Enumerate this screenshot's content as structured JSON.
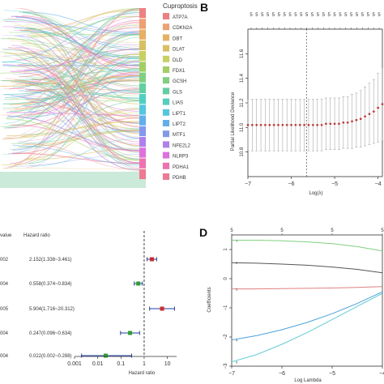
{
  "panels": {
    "b_letter": "B",
    "d_letter": "D"
  },
  "chart_data": [
    {
      "type": "sankey",
      "legend_title": "Cuproptosis",
      "legend": [
        {
          "label": "ATP7A",
          "color": "#f08080"
        },
        {
          "label": "CDKN2A",
          "color": "#f0a070"
        },
        {
          "label": "DBT",
          "color": "#e8b060"
        },
        {
          "label": "DLAT",
          "color": "#d8c060"
        },
        {
          "label": "DLD",
          "color": "#c8d060"
        },
        {
          "label": "FDX1",
          "color": "#a0d060"
        },
        {
          "label": "GCSH",
          "color": "#80d080"
        },
        {
          "label": "GLS",
          "color": "#60d0a0"
        },
        {
          "label": "LIAS",
          "color": "#50d0c0"
        },
        {
          "label": "LIPT1",
          "color": "#50c8e0"
        },
        {
          "label": "LIPT2",
          "color": "#60b0f0"
        },
        {
          "label": "MTF1",
          "color": "#8098f0"
        },
        {
          "label": "NFE2L2",
          "color": "#b080f0"
        },
        {
          "label": "NLRP3",
          "color": "#e070e0"
        },
        {
          "label": "PDHA1",
          "color": "#f070b0"
        },
        {
          "label": "PDHB",
          "color": "#f07890"
        }
      ]
    },
    {
      "type": "errorbar",
      "xlabel": "Log(λ)",
      "ylabel": "Partial Likelihood Deviance",
      "xlim": [
        -7,
        -3.9
      ],
      "ylim": [
        10.6,
        11.8
      ],
      "x_ticks": [
        -7,
        -6,
        -5,
        -4
      ],
      "y_ticks": [
        10.8,
        11.0,
        11.2,
        11.4,
        11.6
      ],
      "top_axis_ticks": [
        "5",
        "5",
        "5",
        "5",
        "5",
        "5",
        "5",
        "5",
        "5",
        "5",
        "5",
        "5",
        "5",
        "5",
        "5",
        "5",
        "5",
        "5",
        "5",
        "5",
        "5",
        "5",
        "5",
        "5"
      ],
      "vline_x": -5.65,
      "color_point": "#d62728",
      "x": [
        -7.0,
        -6.9,
        -6.8,
        -6.7,
        -6.6,
        -6.5,
        -6.4,
        -6.3,
        -6.2,
        -6.1,
        -6.0,
        -5.9,
        -5.8,
        -5.7,
        -5.6,
        -5.5,
        -5.4,
        -5.3,
        -5.2,
        -5.1,
        -5.0,
        -4.9,
        -4.8,
        -4.7,
        -4.6,
        -4.5,
        -4.4,
        -4.3,
        -4.2,
        -4.1,
        -4.0,
        -3.9
      ],
      "y": [
        11.02,
        11.02,
        11.02,
        11.02,
        11.02,
        11.02,
        11.02,
        11.02,
        11.02,
        11.02,
        11.02,
        11.02,
        11.02,
        11.02,
        11.02,
        11.02,
        11.02,
        11.02,
        11.03,
        11.03,
        11.03,
        11.03,
        11.04,
        11.04,
        11.05,
        11.06,
        11.07,
        11.09,
        11.11,
        11.13,
        11.16,
        11.19
      ],
      "err": [
        0.21,
        0.21,
        0.21,
        0.21,
        0.21,
        0.21,
        0.21,
        0.21,
        0.21,
        0.21,
        0.21,
        0.21,
        0.21,
        0.21,
        0.21,
        0.21,
        0.21,
        0.21,
        0.21,
        0.21,
        0.21,
        0.21,
        0.21,
        0.21,
        0.22,
        0.22,
        0.23,
        0.24,
        0.25,
        0.26,
        0.28,
        0.3
      ]
    },
    {
      "type": "forest",
      "col1_header": "value",
      "col2_header": "Hazard ratio",
      "xlabel": "Hazard ratio",
      "x_scale": "log",
      "xlim": [
        0.001,
        25
      ],
      "x_ticks": [
        "0.001",
        "0.01",
        "0.1",
        "1",
        "10"
      ],
      "rows": [
        {
          "pvalue": "002",
          "text": "2.152(1.338~3.461)",
          "hr": 2.152,
          "lo": 1.338,
          "hi": 3.461,
          "color": "#d62728"
        },
        {
          "pvalue": "004",
          "text": "0.558(0.374~0.834)",
          "hr": 0.558,
          "lo": 0.374,
          "hi": 0.834,
          "color": "#2ca02c"
        },
        {
          "pvalue": "005",
          "text": "5.904(1.716~20.312)",
          "hr": 5.904,
          "lo": 1.716,
          "hi": 20.312,
          "color": "#d62728"
        },
        {
          "pvalue": "004",
          "text": "0.247(0.096~0.634)",
          "hr": 0.247,
          "lo": 0.096,
          "hi": 0.634,
          "color": "#2ca02c"
        },
        {
          "pvalue": "004",
          "text": "0.022(0.002~0.288)",
          "hr": 0.022,
          "lo": 0.002,
          "hi": 0.288,
          "color": "#2ca02c"
        }
      ],
      "ci_color": "#1f3fa8"
    },
    {
      "type": "line",
      "xlabel": "Log Lambda",
      "ylabel": "Coefficients",
      "xlim": [
        -7,
        -4
      ],
      "ylim": [
        -3,
        1.5
      ],
      "x_ticks": [
        -7,
        -6,
        -5,
        -4
      ],
      "y_ticks": [
        -3,
        -2,
        -1,
        0,
        1
      ],
      "top_axis_ticks": [
        "5",
        "5",
        "5",
        "5"
      ],
      "series": [
        {
          "color": "#7fd07f",
          "x": [
            -7,
            -6.5,
            -6,
            -5.5,
            -5,
            -4.5,
            -4
          ],
          "y": [
            1.32,
            1.32,
            1.3,
            1.26,
            1.2,
            1.1,
            0.95
          ]
        },
        {
          "color": "#555555",
          "x": [
            -7,
            -6.5,
            -6,
            -5.5,
            -5,
            -4.5,
            -4
          ],
          "y": [
            0.55,
            0.53,
            0.5,
            0.46,
            0.4,
            0.32,
            0.2
          ]
        },
        {
          "color": "#e08080",
          "x": [
            -7,
            -6.5,
            -6,
            -5.5,
            -5,
            -4.5,
            -4
          ],
          "y": [
            -0.35,
            -0.35,
            -0.34,
            -0.33,
            -0.32,
            -0.3,
            -0.27
          ]
        },
        {
          "color": "#4aa3df",
          "x": [
            -7,
            -6.5,
            -6,
            -5.5,
            -5,
            -4.5,
            -4
          ],
          "y": [
            -2.1,
            -1.95,
            -1.75,
            -1.5,
            -1.2,
            -0.85,
            -0.45
          ]
        },
        {
          "color": "#5fd0d8",
          "x": [
            -7,
            -6.5,
            -6,
            -5.5,
            -5,
            -4.5,
            -4
          ],
          "y": [
            -2.85,
            -2.6,
            -2.25,
            -1.85,
            -1.4,
            -0.95,
            -0.5
          ]
        }
      ]
    }
  ]
}
